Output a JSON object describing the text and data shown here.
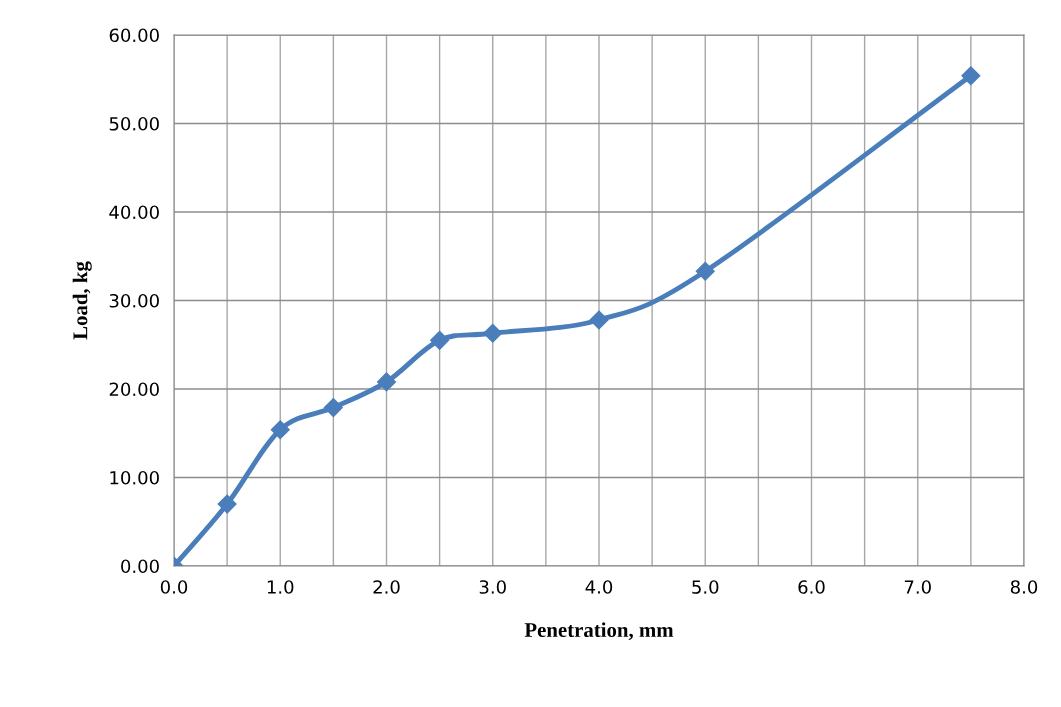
{
  "chart_data": {
    "type": "line",
    "xlabel": "Penetration, mm",
    "ylabel": "Load, kg",
    "x": [
      0,
      0.5,
      1.0,
      1.5,
      2.0,
      2.5,
      3.0,
      4.0,
      5.0,
      7.5
    ],
    "series": [
      {
        "color": "#4a7ebb",
        "values": [
          0.0,
          7.0,
          15.4,
          17.9,
          20.8,
          25.5,
          26.3,
          27.8,
          33.3,
          55.4
        ]
      }
    ],
    "xlim": [
      0,
      8
    ],
    "ylim": [
      0,
      60
    ],
    "xticks": [
      {
        "value": 0,
        "label": "0.0"
      },
      {
        "value": 0.5,
        "label": null
      },
      {
        "value": 1,
        "label": "1.0"
      },
      {
        "value": 1.5,
        "label": null
      },
      {
        "value": 2,
        "label": "2.0"
      },
      {
        "value": 2.5,
        "label": null
      },
      {
        "value": 3,
        "label": "3.0"
      },
      {
        "value": 3.5,
        "label": null
      },
      {
        "value": 4,
        "label": "4.0"
      },
      {
        "value": 4.5,
        "label": null
      },
      {
        "value": 5,
        "label": "5.0"
      },
      {
        "value": 5.5,
        "label": null
      },
      {
        "value": 6,
        "label": "6.0"
      },
      {
        "value": 6.5,
        "label": null
      },
      {
        "value": 7,
        "label": "7.0"
      },
      {
        "value": 7.5,
        "label": null
      },
      {
        "value": 8,
        "label": "8.0"
      }
    ],
    "yticks": [
      {
        "value": 0,
        "label": "0.00"
      },
      {
        "value": 10,
        "label": "10.00"
      },
      {
        "value": 20,
        "label": "20.00"
      },
      {
        "value": 30,
        "label": "30.00"
      },
      {
        "value": 40,
        "label": "40.00"
      },
      {
        "value": 50,
        "label": "50.00"
      },
      {
        "value": 60,
        "label": "60.00"
      }
    ],
    "grid": true,
    "marker": "diamond",
    "line_style": "solid",
    "legend": false
  }
}
